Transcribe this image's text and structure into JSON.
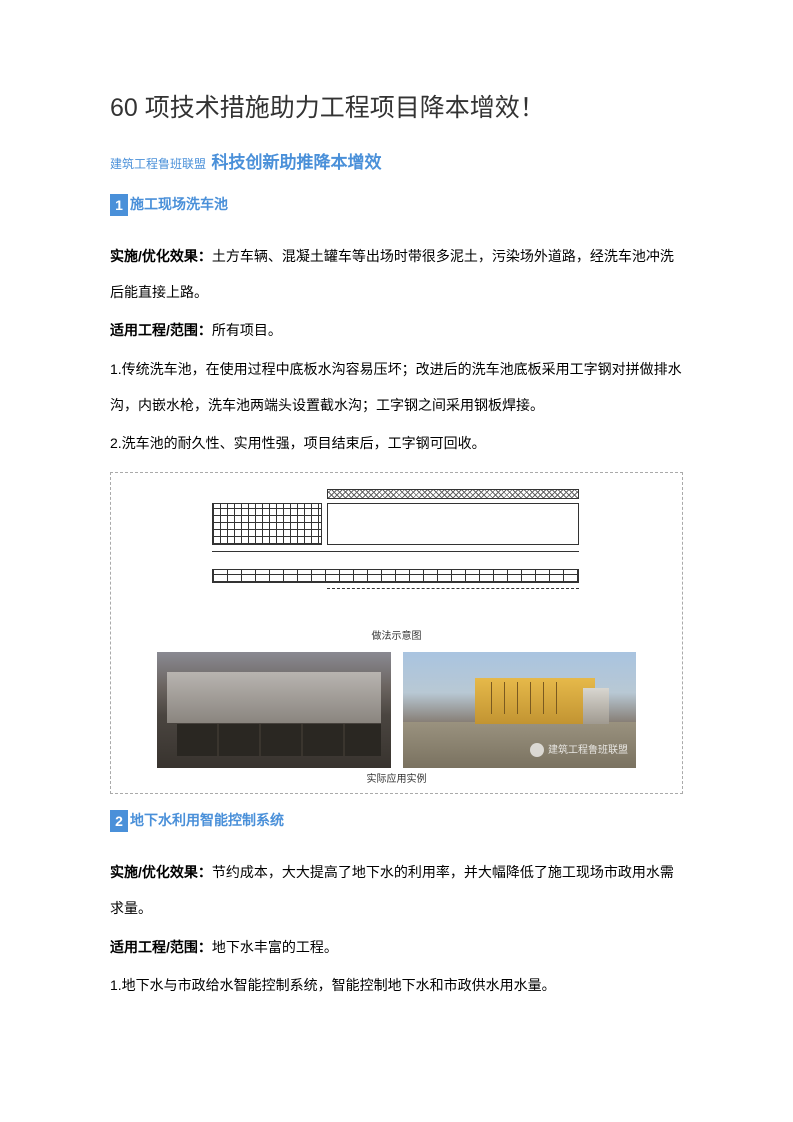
{
  "title": "60 项技术措施助力工程项目降本增效！",
  "subheader": {
    "small": "建筑工程鲁班联盟",
    "large": "科技创新助推降本增效"
  },
  "s1": {
    "num": "1",
    "title": "施工现场洗车池",
    "effect_label": "实施/优化效果：",
    "effect_text": "土方车辆、混凝土罐车等出场时带很多泥土，污染场外道路，经洗车池冲洗后能直接上路。",
    "scope_label": "适用工程/范围：",
    "scope_text": "所有项目。",
    "p1": "1.传统洗车池，在使用过程中底板水沟容易压坏；改进后的洗车池底板采用工字钢对拼做排水沟，内嵌水枪，洗车池两端头设置截水沟；工字钢之间采用钢板焊接。",
    "p2": "2.洗车池的耐久性、实用性强，项目结束后，工字钢可回收。",
    "diagram_caption": "做法示意图",
    "photo_caption": "实际应用实例",
    "watermark_text": "建筑工程鲁班联盟"
  },
  "s2": {
    "num": "2",
    "title": "地下水利用智能控制系统",
    "effect_label": "实施/优化效果：",
    "effect_text": "节约成本，大大提高了地下水的利用率，并大幅降低了施工现场市政用水需求量。",
    "scope_label": "适用工程/范围：",
    "scope_text": "地下水丰富的工程。",
    "p1": "1.地下水与市政给水智能控制系统，智能控制地下水和市政供水用水量。"
  },
  "colors": {
    "accent": "#4a90d9",
    "text": "#000000"
  }
}
